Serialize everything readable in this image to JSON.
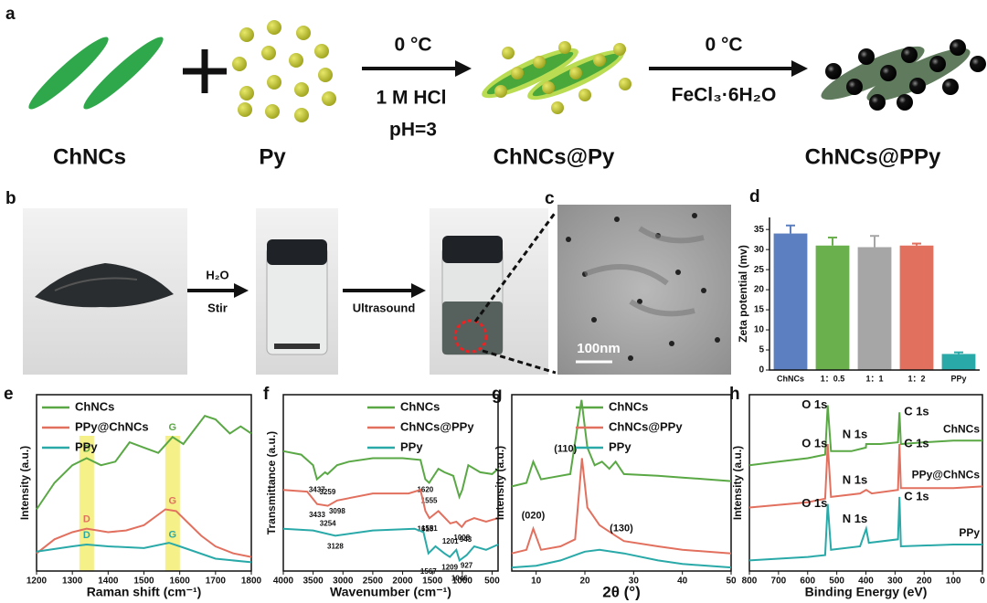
{
  "figure": {
    "panel_a": {
      "label": "a",
      "reactant_1": "ChNCs",
      "reactant_2": "Py",
      "intermediate": "ChNCs@Py",
      "product": "ChNCs@PPy",
      "step_1": {
        "temperature": "0 °C",
        "reagent": "1 M HCl",
        "condition": "pH=3"
      },
      "step_2": {
        "temperature": "0 °C",
        "reagent": "FeCl₃·6H₂O"
      }
    },
    "panel_b": {
      "label": "b",
      "step_1_top": "H₂O",
      "step_1_bottom": "Stir",
      "step_2": "Ultrasound"
    },
    "panel_c": {
      "label": "c",
      "scale_bar": "100nm"
    }
  },
  "chart_data": [
    {
      "type": "bar",
      "label": "d",
      "y_label": "Zeta potential (mv)",
      "categories": [
        "ChNCs",
        "1：0.5",
        "1：1",
        "1：2",
        "PPy"
      ],
      "values": [
        34,
        31,
        30.6,
        31,
        4
      ],
      "errors": [
        2,
        2,
        2.8,
        0.5,
        0.4
      ],
      "colors": [
        "#5b7fc0",
        "#6ab04c",
        "#a6a6a6",
        "#e2705f",
        "#2aa9a9"
      ],
      "ylim": [
        0,
        38
      ],
      "yticks": [
        0,
        5,
        10,
        15,
        20,
        25,
        30,
        35
      ]
    },
    {
      "type": "line",
      "label": "e",
      "x_label": "Raman shift (cm⁻¹)",
      "y_label": "Intensity (a.u.)",
      "xlim": [
        1200,
        1800
      ],
      "xticks": [
        1200,
        1300,
        1400,
        1500,
        1600,
        1700,
        1800
      ],
      "ylim": [
        0,
        100
      ],
      "bands": [
        {
          "label": "D",
          "x": 1340
        },
        {
          "label": "G",
          "x": 1580
        }
      ],
      "series": [
        {
          "name": "ChNCs",
          "color": "#5aa845",
          "x": [
            1200,
            1250,
            1300,
            1340,
            1380,
            1420,
            1460,
            1500,
            1540,
            1580,
            1610,
            1640,
            1670,
            1700,
            1740,
            1770,
            1800
          ],
          "values": [
            35,
            50,
            60,
            64,
            60,
            62,
            73,
            70,
            67,
            76,
            72,
            80,
            88,
            86,
            78,
            82,
            78
          ]
        },
        {
          "name": "PPy@ChNCs",
          "color": "#e2705f",
          "x": [
            1200,
            1250,
            1300,
            1340,
            1400,
            1450,
            1500,
            1560,
            1590,
            1620,
            1660,
            1700,
            1750,
            1800
          ],
          "values": [
            10,
            18,
            22,
            24,
            22,
            23,
            26,
            35,
            34,
            28,
            20,
            14,
            10,
            8
          ]
        },
        {
          "name": "PPy",
          "color": "#2aa9a9",
          "x": [
            1200,
            1300,
            1340,
            1400,
            1500,
            1570,
            1600,
            1700,
            1800
          ],
          "values": [
            11,
            14,
            15,
            14,
            13,
            16,
            14,
            7,
            5
          ]
        }
      ]
    },
    {
      "type": "line",
      "label": "f",
      "x_label": "Wavenumber (cm⁻¹)",
      "y_label": "Transmittance (a.u.)",
      "xlim": [
        4000,
        400
      ],
      "xticks": [
        4000,
        3500,
        3000,
        2500,
        2000,
        1500,
        1000,
        500
      ],
      "ylim": [
        0,
        100
      ],
      "series": [
        {
          "name": "ChNCs",
          "color": "#5aa845",
          "x": [
            4000,
            3700,
            3500,
            3437,
            3300,
            3259,
            3100,
            2900,
            2500,
            2000,
            1700,
            1620,
            1555,
            1400,
            1300,
            1150,
            1050,
            1000,
            900,
            700,
            500,
            400
          ],
          "values": [
            68,
            66,
            60,
            52,
            56,
            55,
            60,
            62,
            64,
            64,
            63,
            52,
            50,
            58,
            56,
            54,
            42,
            46,
            60,
            56,
            55,
            58
          ],
          "peak_labels": [
            3437,
            3259,
            1620,
            1555
          ]
        },
        {
          "name": "ChNCs@PPy",
          "color": "#e2705f",
          "x": [
            4000,
            3600,
            3433,
            3254,
            3098,
            2500,
            1900,
            1700,
            1618,
            1551,
            1400,
            1201,
            1100,
            1008,
            943,
            800,
            600,
            400
          ],
          "values": [
            46,
            45,
            38,
            37,
            40,
            44,
            44,
            46,
            34,
            30,
            34,
            27,
            28,
            25,
            28,
            30,
            28,
            30
          ],
          "peak_labels": [
            3433,
            3254,
            3098,
            1618,
            1551,
            1201,
            1008,
            943
          ]
        },
        {
          "name": "PPy",
          "color": "#2aa9a9",
          "x": [
            4000,
            3500,
            3128,
            2500,
            1800,
            1650,
            1567,
            1450,
            1300,
            1209,
            1100,
            1046,
            927,
            800,
            600,
            400
          ],
          "values": [
            24,
            23,
            20,
            23,
            24,
            22,
            10,
            14,
            10,
            8,
            12,
            6,
            9,
            14,
            12,
            15
          ],
          "peak_labels": [
            3128,
            1567,
            1209,
            1046,
            927
          ]
        }
      ]
    },
    {
      "type": "line",
      "label": "g",
      "x_label": "2θ (°)",
      "y_label": "Intensity (a.u.)",
      "xlim": [
        5,
        50
      ],
      "xticks": [
        10,
        20,
        30,
        40,
        50
      ],
      "ylim": [
        0,
        100
      ],
      "series": [
        {
          "name": "ChNCs",
          "color": "#5aa845",
          "x": [
            5,
            8,
            9.4,
            11,
            13,
            17,
            19.3,
            20.5,
            22,
            23.5,
            25,
            26.3,
            28,
            35,
            40,
            45,
            50
          ],
          "values": [
            48,
            50,
            62,
            52,
            53,
            55,
            97,
            70,
            60,
            62,
            58,
            62,
            55,
            54,
            53,
            52,
            51
          ]
        },
        {
          "name": "ChNCs@PPy",
          "color": "#e2705f",
          "x": [
            5,
            8,
            9.4,
            11,
            15,
            18,
            19.4,
            20.5,
            23,
            26.3,
            28,
            35,
            40,
            50
          ],
          "values": [
            10,
            12,
            24,
            12,
            14,
            18,
            64,
            36,
            26,
            20,
            17,
            14,
            12,
            10
          ],
          "peak_labels": [
            "(020)",
            "(110)",
            "(130)"
          ]
        },
        {
          "name": "PPy",
          "color": "#2aa9a9",
          "x": [
            5,
            10,
            15,
            20,
            23,
            28,
            35,
            40,
            50
          ],
          "values": [
            2,
            3,
            6,
            11,
            12,
            10,
            6,
            4,
            2
          ]
        }
      ]
    },
    {
      "type": "line",
      "label": "h",
      "x_label": "Binding Energy (eV)",
      "y_label": "Intensity (a.u.)",
      "xlim": [
        800,
        0
      ],
      "xticks": [
        800,
        700,
        600,
        500,
        400,
        300,
        200,
        100,
        0
      ],
      "ylim": [
        0,
        100
      ],
      "series": [
        {
          "name": "ChNCs",
          "color": "#5aa845",
          "x": [
            800,
            700,
            600,
            540,
            531,
            520,
            450,
            400,
            399,
            350,
            290,
            285,
            280,
            200,
            100,
            0
          ],
          "values": [
            60,
            62,
            64,
            66,
            94,
            68,
            68,
            70,
            72,
            72,
            73,
            90,
            72,
            73,
            74,
            74
          ],
          "peak_labels": [
            "O 1s",
            "N 1s",
            "C 1s"
          ]
        },
        {
          "name": "PPy@ChNCs",
          "color": "#e2705f",
          "x": [
            800,
            600,
            540,
            531,
            520,
            420,
            399,
            380,
            290,
            285,
            280,
            100,
            0
          ],
          "values": [
            36,
            39,
            41,
            72,
            42,
            44,
            46,
            44,
            46,
            72,
            47,
            47,
            48
          ],
          "peak_labels": [
            "O 1s",
            "N 1s",
            "C 1s"
          ]
        },
        {
          "name": "PPy",
          "color": "#2aa9a9",
          "x": [
            800,
            600,
            540,
            531,
            520,
            420,
            399,
            390,
            290,
            285,
            280,
            100,
            0
          ],
          "values": [
            6,
            8,
            9,
            38,
            12,
            14,
            24,
            16,
            18,
            42,
            14,
            15,
            15
          ],
          "peak_labels": [
            "O 1s",
            "N 1s",
            "C 1s"
          ]
        }
      ]
    }
  ]
}
